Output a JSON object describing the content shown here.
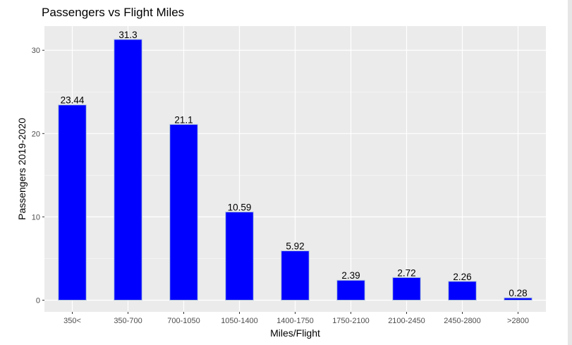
{
  "chart_data": {
    "type": "bar",
    "title": "Passengers vs Flight Miles",
    "xlabel": "Miles/Flight",
    "ylabel": "Passengers 2019-2020",
    "categories": [
      "350<",
      "350-700",
      "700-1050",
      "1050-1400",
      "1400-1750",
      "1750-2100",
      "2100-2450",
      "2450-2800",
      ">2800"
    ],
    "values": [
      23.44,
      31.3,
      21.1,
      10.59,
      5.92,
      2.39,
      2.72,
      2.26,
      0.28
    ],
    "data_labels": [
      "23.44",
      "31.3",
      "21.1",
      "10.59",
      "5.92",
      "2.39",
      "2.72",
      "2.26",
      "0.28"
    ],
    "yticks": [
      0,
      10,
      20,
      30
    ],
    "ylim": [
      -1.4,
      32.9
    ],
    "grid": true,
    "legend": "none",
    "colors": {
      "bar_fill": "#0000ff",
      "bar_outline": "#b0c4de",
      "panel_background": "#ebebeb",
      "grid_major": "#ffffff"
    }
  }
}
